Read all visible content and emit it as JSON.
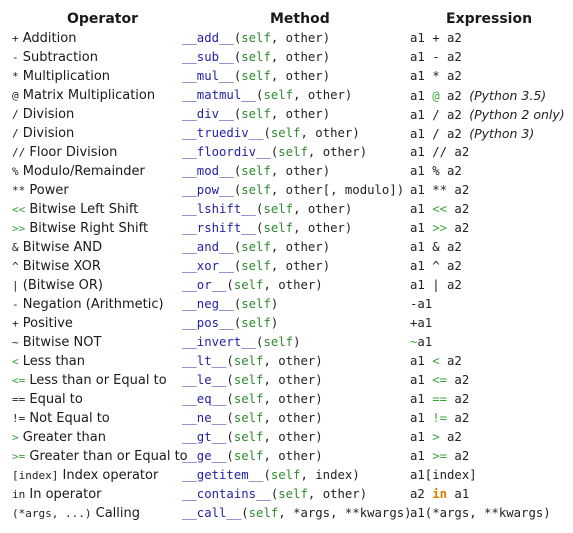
{
  "colors": {
    "method": "#2323a8",
    "self": "#2e8b2e",
    "other": "#222222",
    "muted": "#3aa33a",
    "orange": "#e07b00"
  },
  "headers": {
    "operator": "Operator",
    "method": "Method",
    "expression": "Expression"
  },
  "rows": [
    {
      "op_sym": "+",
      "op_label": "Addition",
      "method": "__add__",
      "params": [
        [
          "self",
          "g"
        ],
        [
          ", ",
          "o"
        ],
        [
          "other",
          "o"
        ]
      ],
      "expr": [
        [
          "a1 ",
          "o"
        ],
        [
          "+",
          "o"
        ],
        [
          " a2",
          "o"
        ]
      ]
    },
    {
      "op_sym": "-",
      "op_label": "Subtraction",
      "method": "__sub__",
      "params": [
        [
          "self",
          "g"
        ],
        [
          ", ",
          "o"
        ],
        [
          "other",
          "o"
        ]
      ],
      "expr": [
        [
          "a1 ",
          "o"
        ],
        [
          "-",
          "o"
        ],
        [
          " a2",
          "o"
        ]
      ]
    },
    {
      "op_sym": "*",
      "op_label": "Multiplication",
      "method": "__mul__",
      "params": [
        [
          "self",
          "g"
        ],
        [
          ", ",
          "o"
        ],
        [
          "other",
          "o"
        ]
      ],
      "expr": [
        [
          "a1 ",
          "o"
        ],
        [
          "*",
          "o"
        ],
        [
          " a2",
          "o"
        ]
      ]
    },
    {
      "op_sym": "@",
      "op_label": "Matrix Multiplication",
      "method": "__matmul__",
      "params": [
        [
          "self",
          "g"
        ],
        [
          ", ",
          "o"
        ],
        [
          "other",
          "o"
        ]
      ],
      "expr": [
        [
          "a1 ",
          "o"
        ],
        [
          "@",
          "m"
        ],
        [
          " a2 ",
          "o"
        ],
        [
          "(Python 3.5)",
          "i"
        ]
      ]
    },
    {
      "op_sym": "/",
      "op_label": "Division",
      "method": "__div__",
      "params": [
        [
          "self",
          "g"
        ],
        [
          ", ",
          "o"
        ],
        [
          "other",
          "o"
        ]
      ],
      "expr": [
        [
          "a1 ",
          "o"
        ],
        [
          "/",
          "o"
        ],
        [
          " a2 ",
          "o"
        ],
        [
          "(Python 2 only)",
          "i"
        ]
      ]
    },
    {
      "op_sym": "/",
      "op_label": "Division",
      "method": "__truediv__",
      "params": [
        [
          "self",
          "g"
        ],
        [
          ", ",
          "o"
        ],
        [
          "other",
          "o"
        ]
      ],
      "expr": [
        [
          "a1 ",
          "o"
        ],
        [
          "/",
          "o"
        ],
        [
          " a2 ",
          "o"
        ],
        [
          "(Python 3)",
          "i"
        ]
      ]
    },
    {
      "op_sym": "//",
      "op_label": "Floor Division",
      "method": "__floordiv__",
      "params": [
        [
          "self",
          "g"
        ],
        [
          ", ",
          "o"
        ],
        [
          "other",
          "o"
        ]
      ],
      "expr": [
        [
          "a1 ",
          "o"
        ],
        [
          "//",
          "o"
        ],
        [
          " a2",
          "o"
        ]
      ]
    },
    {
      "op_sym": "%",
      "op_label": "Modulo/Remainder",
      "method": "__mod__",
      "params": [
        [
          "self",
          "g"
        ],
        [
          ", ",
          "o"
        ],
        [
          "other",
          "o"
        ]
      ],
      "expr": [
        [
          "a1 ",
          "o"
        ],
        [
          "%",
          "o"
        ],
        [
          " a2",
          "o"
        ]
      ]
    },
    {
      "op_sym": "**",
      "op_label": "Power",
      "method": "__pow__",
      "params": [
        [
          "self",
          "g"
        ],
        [
          ", ",
          "o"
        ],
        [
          "other[, modulo]",
          "o"
        ]
      ],
      "expr": [
        [
          "a1 ",
          "o"
        ],
        [
          "**",
          "o"
        ],
        [
          " a2",
          "o"
        ]
      ]
    },
    {
      "op_sym": "<<",
      "op_label": "Bitwise Left Shift",
      "method": "__lshift__",
      "params": [
        [
          "self",
          "g"
        ],
        [
          ", ",
          "o"
        ],
        [
          "other",
          "o"
        ]
      ],
      "expr": [
        [
          "a1 ",
          "o"
        ],
        [
          "<<",
          "m"
        ],
        [
          " a2",
          "o"
        ]
      ]
    },
    {
      "op_sym": ">>",
      "op_label": "Bitwise Right Shift",
      "method": "__rshift__",
      "params": [
        [
          "self",
          "g"
        ],
        [
          ", ",
          "o"
        ],
        [
          "other",
          "o"
        ]
      ],
      "expr": [
        [
          "a1 ",
          "o"
        ],
        [
          ">>",
          "m"
        ],
        [
          " a2",
          "o"
        ]
      ]
    },
    {
      "op_sym": "&",
      "op_label": "Bitwise AND",
      "method": "__and__",
      "params": [
        [
          "self",
          "g"
        ],
        [
          ", ",
          "o"
        ],
        [
          "other",
          "o"
        ]
      ],
      "expr": [
        [
          "a1 ",
          "o"
        ],
        [
          "&",
          "o"
        ],
        [
          " a2",
          "o"
        ]
      ]
    },
    {
      "op_sym": "^",
      "op_label": "Bitwise XOR",
      "method": "__xor__",
      "params": [
        [
          "self",
          "g"
        ],
        [
          ", ",
          "o"
        ],
        [
          "other",
          "o"
        ]
      ],
      "expr": [
        [
          "a1 ",
          "o"
        ],
        [
          "^",
          "o"
        ],
        [
          " a2",
          "o"
        ]
      ]
    },
    {
      "op_sym": "|",
      "op_label": "(Bitwise OR)",
      "method": "__or__",
      "params": [
        [
          "self",
          "g"
        ],
        [
          ", ",
          "o"
        ],
        [
          "other",
          "o"
        ]
      ],
      "expr": [
        [
          "a1 ",
          "o"
        ],
        [
          "|",
          "o"
        ],
        [
          " a2",
          "o"
        ]
      ]
    },
    {
      "op_sym": "-",
      "op_label": "Negation (Arithmetic)",
      "method": "__neg__",
      "params": [
        [
          "self",
          "g"
        ]
      ],
      "expr": [
        [
          "-a1",
          "o"
        ]
      ]
    },
    {
      "op_sym": "+",
      "op_label": "Positive",
      "method": "__pos__",
      "params": [
        [
          "self",
          "g"
        ]
      ],
      "expr": [
        [
          "+a1",
          "o"
        ]
      ]
    },
    {
      "op_sym": "~",
      "op_label": "Bitwise NOT",
      "method": "__invert__",
      "params": [
        [
          "self",
          "g"
        ]
      ],
      "expr": [
        [
          "~",
          "m"
        ],
        [
          "a1",
          "o"
        ]
      ]
    },
    {
      "op_sym": "<",
      "op_label": "Less than",
      "method": "__lt__",
      "params": [
        [
          "self",
          "g"
        ],
        [
          ", ",
          "o"
        ],
        [
          "other",
          "o"
        ]
      ],
      "expr": [
        [
          "a1 ",
          "o"
        ],
        [
          "<",
          "m"
        ],
        [
          " a2",
          "o"
        ]
      ]
    },
    {
      "op_sym": "<=",
      "op_label": "Less than or Equal to",
      "method": "__le__",
      "params": [
        [
          "self",
          "g"
        ],
        [
          ", ",
          "o"
        ],
        [
          "other",
          "o"
        ]
      ],
      "expr": [
        [
          "a1 ",
          "o"
        ],
        [
          "<=",
          "m"
        ],
        [
          " a2",
          "o"
        ]
      ]
    },
    {
      "op_sym": "==",
      "op_label": "Equal to",
      "method": "__eq__",
      "params": [
        [
          "self",
          "g"
        ],
        [
          ", ",
          "o"
        ],
        [
          "other",
          "o"
        ]
      ],
      "expr": [
        [
          "a1 ",
          "o"
        ],
        [
          "==",
          "m"
        ],
        [
          " a2",
          "o"
        ]
      ]
    },
    {
      "op_sym": "!=",
      "op_label": "Not Equal to",
      "method": "__ne__",
      "params": [
        [
          "self",
          "g"
        ],
        [
          ", ",
          "o"
        ],
        [
          "other",
          "o"
        ]
      ],
      "expr": [
        [
          "a1 ",
          "o"
        ],
        [
          "!=",
          "m"
        ],
        [
          " a2",
          "o"
        ]
      ]
    },
    {
      "op_sym": ">",
      "op_label": "Greater than",
      "method": "__gt__",
      "params": [
        [
          "self",
          "g"
        ],
        [
          ", ",
          "o"
        ],
        [
          "other",
          "o"
        ]
      ],
      "expr": [
        [
          "a1 ",
          "o"
        ],
        [
          ">",
          "m"
        ],
        [
          " a2",
          "o"
        ]
      ]
    },
    {
      "op_sym": ">=",
      "op_label": "Greater than or Equal to",
      "method": "__ge__",
      "params": [
        [
          "self",
          "g"
        ],
        [
          ", ",
          "o"
        ],
        [
          "other",
          "o"
        ]
      ],
      "expr": [
        [
          "a1 ",
          "o"
        ],
        [
          ">=",
          "m"
        ],
        [
          " a2",
          "o"
        ]
      ]
    },
    {
      "op_sym": "[index]",
      "op_label": "Index operator",
      "method": "__getitem__",
      "params": [
        [
          "self",
          "g"
        ],
        [
          ", ",
          "o"
        ],
        [
          "index",
          "o"
        ]
      ],
      "expr": [
        [
          "a1[index]",
          "o"
        ]
      ]
    },
    {
      "op_sym": "in",
      "op_label": "In operator",
      "method": "__contains__",
      "params": [
        [
          "self",
          "g"
        ],
        [
          ", ",
          "o"
        ],
        [
          "other",
          "o"
        ]
      ],
      "expr": [
        [
          "a2 ",
          "o"
        ],
        [
          "in",
          "k"
        ],
        [
          " a1",
          "o"
        ]
      ]
    },
    {
      "op_sym": "(*args, ...)",
      "op_label": "Calling",
      "method": "__call__",
      "params": [
        [
          "self",
          "g"
        ],
        [
          ", *args, **kwargs",
          "o"
        ]
      ],
      "expr": [
        [
          "a1(*args, **kwargs)",
          "o"
        ]
      ]
    }
  ]
}
